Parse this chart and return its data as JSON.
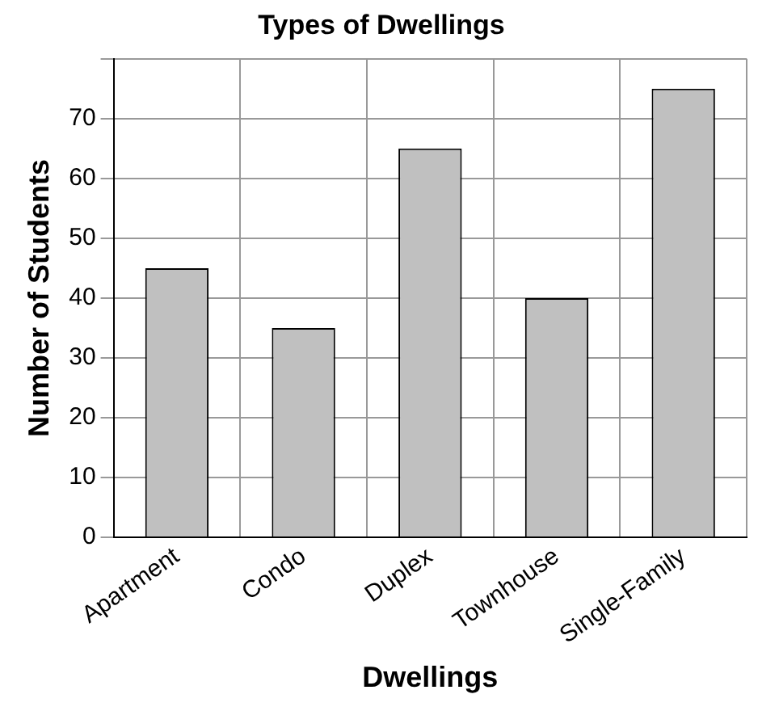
{
  "chart_data": {
    "type": "bar",
    "title": "Types of Dwellings",
    "xlabel": "Dwellings",
    "ylabel": "Number of Students",
    "categories": [
      "Apartment",
      "Condo",
      "Duplex",
      "Townhouse",
      "Single-Family"
    ],
    "values": [
      45,
      35,
      65,
      40,
      75
    ],
    "color": "#c0c0c0",
    "ylim": [
      0,
      80
    ],
    "yticks": [
      0,
      10,
      20,
      30,
      40,
      50,
      60,
      70,
      {
        "value": 80,
        "label": null
      }
    ],
    "grid": true
  }
}
